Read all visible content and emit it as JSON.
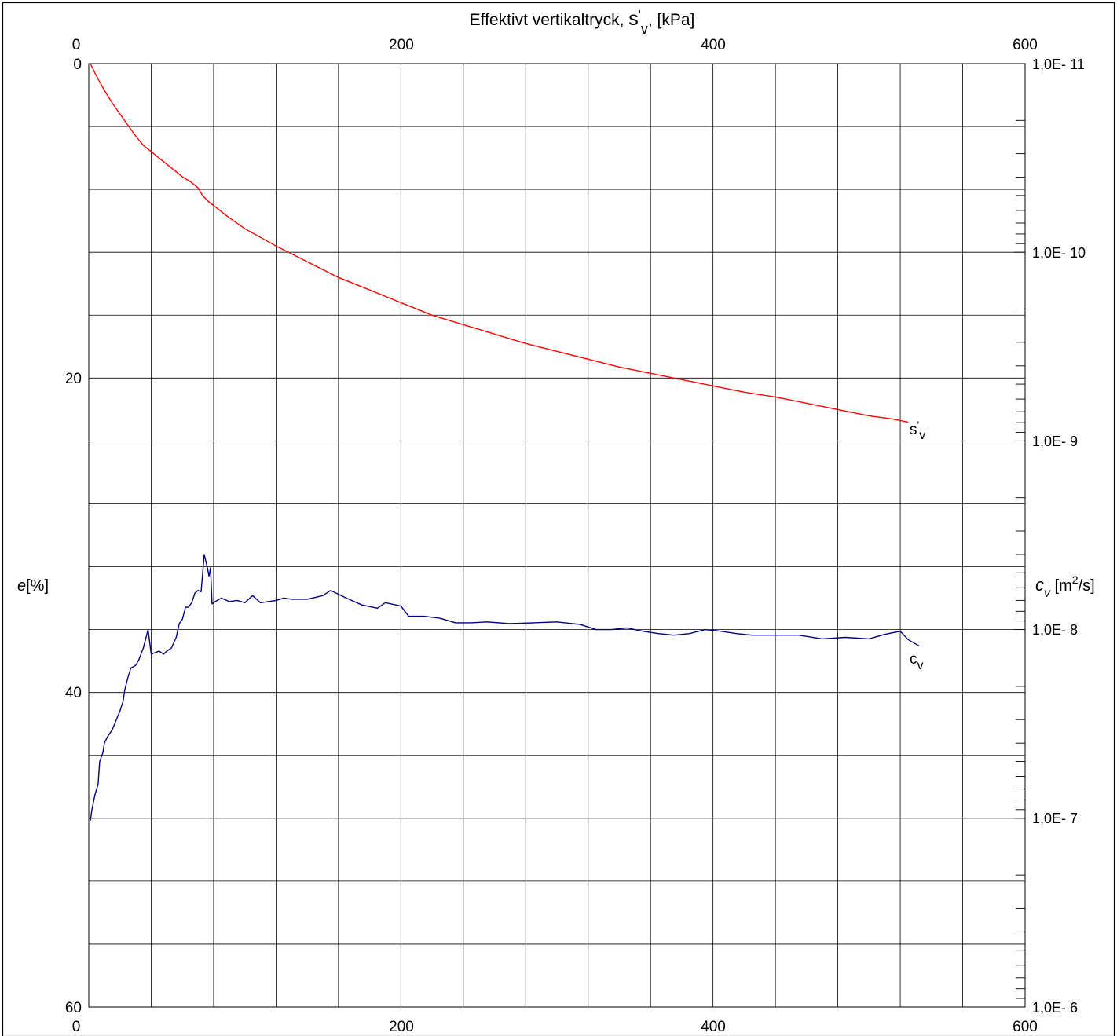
{
  "chart_data": {
    "type": "line",
    "title_parts": {
      "prefix": "Effektivt vertikaltryck,",
      "symbol": "s",
      "prime": "'",
      "subscript": "v",
      "suffix": ", [kPa]"
    },
    "x_axis": {
      "min": 0,
      "max": 600,
      "top_ticks": [
        "0",
        "200",
        "400",
        "600"
      ],
      "bottom_ticks": [
        "0",
        "200",
        "400",
        "600"
      ],
      "tick_values": [
        0,
        200,
        400,
        600
      ],
      "minor_gridlines": [
        0,
        40,
        80,
        120,
        160,
        200,
        240,
        280,
        320,
        360,
        400,
        440,
        480,
        520,
        560,
        600
      ]
    },
    "left_axis": {
      "label_italic": "e",
      "label_rest": "[%]",
      "min": 0,
      "max": 60,
      "inverted": true,
      "ticks": [
        "0",
        "20",
        "40",
        "60"
      ],
      "tick_values": [
        0,
        20,
        40,
        60
      ],
      "gridlines": [
        0,
        4,
        8,
        12,
        16,
        20,
        24,
        28,
        32,
        36,
        40,
        44,
        48,
        52,
        56,
        60
      ]
    },
    "right_axis": {
      "label_italic": "c",
      "label_sub": "v",
      "label_pre": " [m",
      "label_sup": "2",
      "label_post": "/s]",
      "scale": "log",
      "min": 1e-11,
      "max": 1e-06,
      "inverted": true,
      "ticks": [
        "1,0E- 11",
        "1,0E- 10",
        "1,0E- 9",
        "1,0E- 8",
        "1,0E- 7",
        "1,0E- 6"
      ],
      "tick_values": [
        1e-11,
        1e-10,
        1e-09,
        1e-08,
        1e-07,
        1e-06
      ]
    },
    "grid": true,
    "series": [
      {
        "name": "s'v",
        "label_base": "s",
        "label_prime": "'",
        "label_sub": "v",
        "color": "#ff0000",
        "axis": "left",
        "points": [
          [
            1,
            0
          ],
          [
            5,
            0.8
          ],
          [
            10,
            1.7
          ],
          [
            15,
            2.5
          ],
          [
            20,
            3.2
          ],
          [
            25,
            3.9
          ],
          [
            30,
            4.6
          ],
          [
            35,
            5.2
          ],
          [
            40,
            5.6
          ],
          [
            45,
            6.0
          ],
          [
            50,
            6.4
          ],
          [
            55,
            6.8
          ],
          [
            60,
            7.2
          ],
          [
            65,
            7.5
          ],
          [
            70,
            7.9
          ],
          [
            73,
            8.4
          ],
          [
            77,
            8.8
          ],
          [
            90,
            9.8
          ],
          [
            100,
            10.5
          ],
          [
            120,
            11.6
          ],
          [
            140,
            12.6
          ],
          [
            160,
            13.6
          ],
          [
            180,
            14.4
          ],
          [
            200,
            15.2
          ],
          [
            220,
            16.0
          ],
          [
            240,
            16.6
          ],
          [
            260,
            17.2
          ],
          [
            280,
            17.8
          ],
          [
            300,
            18.3
          ],
          [
            320,
            18.8
          ],
          [
            340,
            19.3
          ],
          [
            360,
            19.7
          ],
          [
            380,
            20.1
          ],
          [
            400,
            20.5
          ],
          [
            420,
            20.9
          ],
          [
            440,
            21.2
          ],
          [
            460,
            21.6
          ],
          [
            480,
            22.0
          ],
          [
            500,
            22.4
          ],
          [
            515,
            22.6
          ],
          [
            525,
            22.8
          ]
        ]
      },
      {
        "name": "cv",
        "label_base": "c",
        "label_sub": "v",
        "color": "#000080",
        "axis": "right",
        "points": [
          [
            1,
            1.03e-07
          ],
          [
            2,
            9e-08
          ],
          [
            4,
            7.5e-08
          ],
          [
            6,
            6.6e-08
          ],
          [
            7,
            5e-08
          ],
          [
            9,
            4.5e-08
          ],
          [
            10,
            4e-08
          ],
          [
            12,
            3.7e-08
          ],
          [
            15,
            3.4e-08
          ],
          [
            17,
            3.1e-08
          ],
          [
            20,
            2.7e-08
          ],
          [
            22,
            2.4e-08
          ],
          [
            23,
            2.1e-08
          ],
          [
            25,
            1.8e-08
          ],
          [
            27,
            1.6e-08
          ],
          [
            30,
            1.55e-08
          ],
          [
            32,
            1.45e-08
          ],
          [
            35,
            1.25e-08
          ],
          [
            38,
            1e-08
          ],
          [
            40,
            1.35e-08
          ],
          [
            45,
            1.3e-08
          ],
          [
            48,
            1.35e-08
          ],
          [
            50,
            1.3e-08
          ],
          [
            53,
            1.25e-08
          ],
          [
            56,
            1.1e-08
          ],
          [
            58,
            9.3e-09
          ],
          [
            60,
            8.8e-09
          ],
          [
            62,
            7.6e-09
          ],
          [
            64,
            7.6e-09
          ],
          [
            66,
            7.2e-09
          ],
          [
            68,
            6.4e-09
          ],
          [
            70,
            6.2e-09
          ],
          [
            72,
            6.3e-09
          ],
          [
            74,
            4e-09
          ],
          [
            76,
            4.7e-09
          ],
          [
            77,
            5.2e-09
          ],
          [
            78,
            4.7e-09
          ],
          [
            79,
            7.3e-09
          ],
          [
            81,
            7.1e-09
          ],
          [
            85,
            6.8e-09
          ],
          [
            90,
            7.1e-09
          ],
          [
            95,
            7e-09
          ],
          [
            100,
            7.2e-09
          ],
          [
            105,
            6.6e-09
          ],
          [
            110,
            7.2e-09
          ],
          [
            115,
            7.1e-09
          ],
          [
            120,
            7e-09
          ],
          [
            125,
            6.8e-09
          ],
          [
            130,
            6.9e-09
          ],
          [
            140,
            6.9e-09
          ],
          [
            150,
            6.6e-09
          ],
          [
            155,
            6.2e-09
          ],
          [
            165,
            6.8e-09
          ],
          [
            175,
            7.4e-09
          ],
          [
            185,
            7.7e-09
          ],
          [
            190,
            7.2e-09
          ],
          [
            200,
            7.5e-09
          ],
          [
            205,
            8.5e-09
          ],
          [
            215,
            8.5e-09
          ],
          [
            225,
            8.7e-09
          ],
          [
            235,
            9.2e-09
          ],
          [
            245,
            9.2e-09
          ],
          [
            255,
            9.1e-09
          ],
          [
            270,
            9.3e-09
          ],
          [
            285,
            9.2e-09
          ],
          [
            300,
            9.1e-09
          ],
          [
            315,
            9.4e-09
          ],
          [
            325,
            1e-08
          ],
          [
            335,
            1e-08
          ],
          [
            345,
            9.8e-09
          ],
          [
            355,
            1.02e-08
          ],
          [
            365,
            1.05e-08
          ],
          [
            375,
            1.07e-08
          ],
          [
            385,
            1.05e-08
          ],
          [
            395,
            1e-08
          ],
          [
            405,
            1.02e-08
          ],
          [
            415,
            1.05e-08
          ],
          [
            425,
            1.07e-08
          ],
          [
            440,
            1.07e-08
          ],
          [
            455,
            1.07e-08
          ],
          [
            470,
            1.12e-08
          ],
          [
            485,
            1.1e-08
          ],
          [
            500,
            1.12e-08
          ],
          [
            510,
            1.06e-08
          ],
          [
            520,
            1.02e-08
          ],
          [
            525,
            1.13e-08
          ],
          [
            532,
            1.22e-08
          ]
        ]
      }
    ]
  }
}
